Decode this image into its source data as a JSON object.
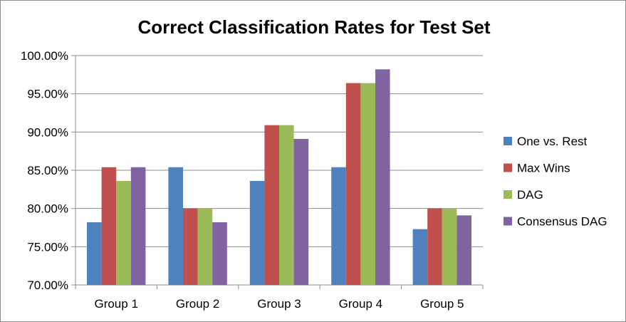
{
  "chart_data": {
    "type": "bar",
    "title": "Correct Classification Rates for Test Set",
    "categories": [
      "Group 1",
      "Group 2",
      "Group 3",
      "Group 4",
      "Group 5"
    ],
    "series": [
      {
        "name": "One vs. Rest",
        "color": "#4F81BD",
        "values": [
          78.2,
          85.4,
          83.6,
          85.4,
          77.3
        ]
      },
      {
        "name": "Max Wins",
        "color": "#C0504D",
        "values": [
          85.4,
          80.0,
          90.9,
          96.4,
          80.0
        ]
      },
      {
        "name": "DAG",
        "color": "#9BBB59",
        "values": [
          83.6,
          80.0,
          90.9,
          96.4,
          80.0
        ]
      },
      {
        "name": "Consensus DAG",
        "color": "#8064A2",
        "values": [
          85.4,
          78.2,
          89.1,
          98.2,
          79.1
        ]
      }
    ],
    "ylim": [
      70,
      100
    ],
    "yticks": [
      "70.00%",
      "75.00%",
      "80.00%",
      "85.00%",
      "90.00%",
      "95.00%",
      "100.00%"
    ],
    "grid": true,
    "legend_position": "right"
  }
}
